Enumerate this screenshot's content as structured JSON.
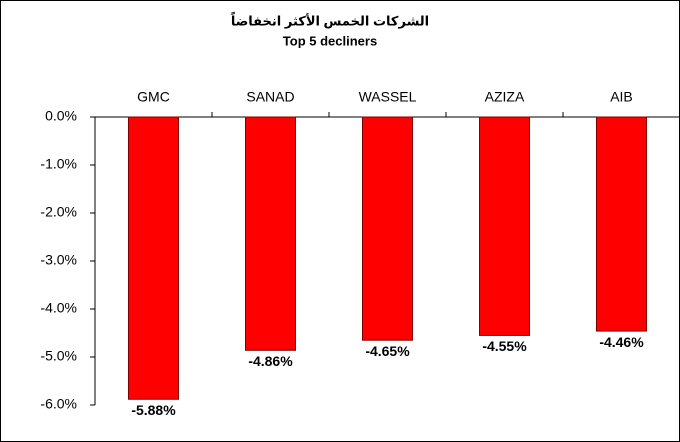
{
  "chart_data": {
    "type": "bar",
    "title": "الشركات الخمس الأكثر انخفاضاً",
    "subtitle": "Top 5 decliners",
    "categories": [
      "GMC",
      "SANAD",
      "WASSEL",
      "AZIZA",
      "AIB"
    ],
    "values": [
      -5.88,
      -4.86,
      -4.65,
      -4.55,
      -4.46
    ],
    "value_labels": [
      "-5.88%",
      "-4.86%",
      "-4.65%",
      "-4.55%",
      "-4.46%"
    ],
    "color": "#ff0000",
    "ylim": [
      -6,
      0
    ],
    "yticks": [
      {
        "value": 0,
        "label": "0.0%"
      },
      {
        "value": -1,
        "label": "-1.0%"
      },
      {
        "value": -2,
        "label": "-2.0%"
      },
      {
        "value": -3,
        "label": "-3.0%"
      },
      {
        "value": -4,
        "label": "-4.0%"
      },
      {
        "value": -5,
        "label": "-5.0%"
      },
      {
        "value": -6,
        "label": "-6.0%"
      }
    ]
  }
}
